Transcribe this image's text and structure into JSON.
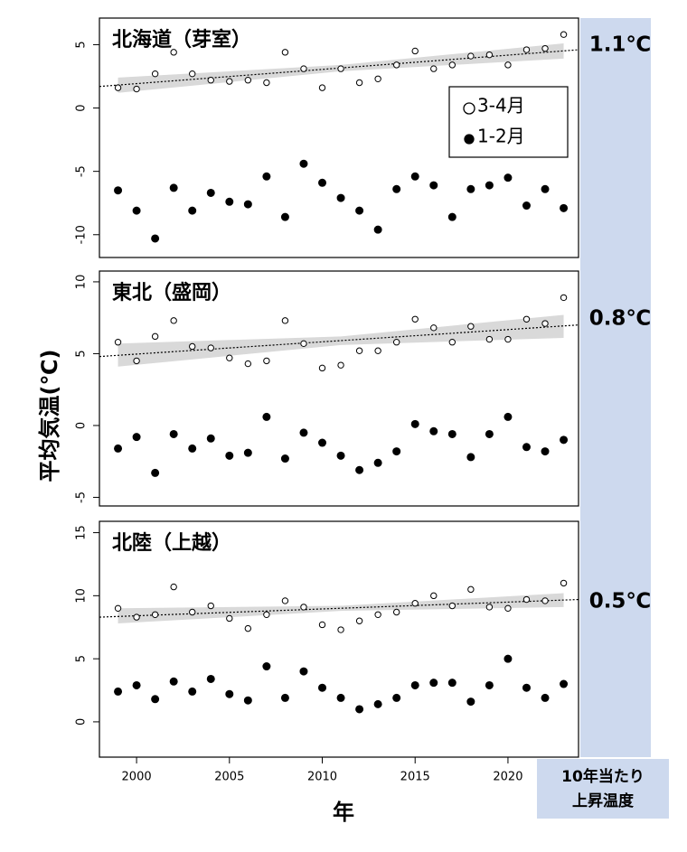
{
  "y_label": "平均気温(℃)",
  "x_label": "年",
  "rate_header": [
    "10年当たり",
    "上昇温度"
  ],
  "chart_data": [
    {
      "type": "scatter",
      "title": "北海道（芽室）",
      "rate_label": "1.1℃",
      "x": [
        1999,
        2000,
        2001,
        2002,
        2003,
        2004,
        2005,
        2006,
        2007,
        2008,
        2009,
        2010,
        2011,
        2012,
        2013,
        2014,
        2015,
        2016,
        2017,
        2018,
        2019,
        2020,
        2021,
        2022,
        2023
      ],
      "series": [
        {
          "name": "3-4月",
          "color": "#000000",
          "marker": "open",
          "values": [
            1.6,
            1.5,
            2.7,
            4.4,
            2.7,
            2.2,
            2.1,
            2.2,
            2.0,
            4.4,
            3.1,
            1.6,
            3.1,
            2.0,
            2.3,
            3.4,
            4.5,
            3.1,
            3.4,
            4.1,
            4.2,
            3.4,
            4.6,
            4.7,
            5.8
          ]
        },
        {
          "name": "1-2月",
          "color": "#000000",
          "marker": "filled",
          "values": [
            -6.5,
            -8.1,
            -10.3,
            -6.3,
            -8.1,
            -6.7,
            -7.4,
            -7.6,
            -5.4,
            -8.6,
            -4.4,
            -5.9,
            -7.1,
            -8.1,
            -9.6,
            -6.4,
            -5.4,
            -6.1,
            -8.6,
            -6.4,
            -6.1,
            -5.5,
            -7.7,
            -6.4,
            -7.9
          ]
        }
      ],
      "trend": {
        "x": [
          1998,
          2023.8
        ],
        "values": [
          1.7,
          4.6
        ]
      },
      "band": {
        "x": [
          1999,
          2011,
          2023
        ],
        "lower": [
          1.2,
          2.9,
          3.9
        ],
        "upper": [
          2.4,
          3.4,
          5.1
        ],
        "color": "#d9d9d9"
      },
      "xlim": [
        1998,
        2023.8
      ],
      "ylim": [
        -11.8,
        7.1
      ],
      "yticks": [
        -10,
        -5,
        0,
        5
      ],
      "legend": "right"
    },
    {
      "type": "scatter",
      "title": "東北（盛岡）",
      "rate_label": "0.8℃",
      "x": [
        1999,
        2000,
        2001,
        2002,
        2003,
        2004,
        2005,
        2006,
        2007,
        2008,
        2009,
        2010,
        2011,
        2012,
        2013,
        2014,
        2015,
        2016,
        2017,
        2018,
        2019,
        2020,
        2021,
        2022,
        2023
      ],
      "series": [
        {
          "name": "3-4月",
          "color": "#000000",
          "marker": "open",
          "values": [
            5.8,
            4.5,
            6.2,
            7.3,
            5.5,
            5.4,
            4.7,
            4.3,
            4.5,
            7.3,
            5.7,
            4.0,
            4.2,
            5.2,
            5.2,
            5.8,
            7.4,
            6.8,
            5.8,
            6.9,
            6.0,
            6.0,
            7.4,
            7.1,
            8.9
          ]
        },
        {
          "name": "1-2月",
          "color": "#000000",
          "marker": "filled",
          "values": [
            -1.6,
            -0.8,
            -3.3,
            -0.6,
            -1.6,
            -0.9,
            -2.1,
            -1.9,
            0.6,
            -2.3,
            -0.5,
            -1.2,
            -2.1,
            -3.1,
            -2.6,
            -1.8,
            0.1,
            -0.4,
            -0.6,
            -2.2,
            -0.6,
            0.6,
            -1.5,
            -1.8,
            -1.0
          ]
        }
      ],
      "trend": {
        "x": [
          1998,
          2023.8
        ],
        "values": [
          4.8,
          7.0
        ]
      },
      "band": {
        "x": [
          1999,
          2011,
          2023
        ],
        "lower": [
          4.1,
          5.6,
          6.1
        ],
        "upper": [
          5.7,
          6.2,
          7.7
        ],
        "color": "#d9d9d9"
      },
      "xlim": [
        1998,
        2023.8
      ],
      "ylim": [
        -5.6,
        10.75
      ],
      "yticks": [
        -5,
        0,
        5,
        10
      ]
    },
    {
      "type": "scatter",
      "title": "北陸（上越）",
      "rate_label": "0.5℃",
      "x": [
        1999,
        2000,
        2001,
        2002,
        2003,
        2004,
        2005,
        2006,
        2007,
        2008,
        2009,
        2010,
        2011,
        2012,
        2013,
        2014,
        2015,
        2016,
        2017,
        2018,
        2019,
        2020,
        2021,
        2022,
        2023
      ],
      "series": [
        {
          "name": "3-4月",
          "color": "#000000",
          "marker": "open",
          "values": [
            9.0,
            8.3,
            8.5,
            10.7,
            8.7,
            9.2,
            8.2,
            7.4,
            8.5,
            9.6,
            9.1,
            7.7,
            7.3,
            8.0,
            8.5,
            8.7,
            9.4,
            10.0,
            9.2,
            10.5,
            9.1,
            9.0,
            9.7,
            9.6,
            11.0
          ]
        },
        {
          "name": "1-2月",
          "color": "#000000",
          "marker": "filled",
          "values": [
            2.4,
            2.9,
            1.8,
            3.2,
            2.4,
            3.4,
            2.2,
            1.7,
            4.4,
            1.9,
            4.0,
            2.7,
            1.9,
            1.0,
            1.4,
            1.9,
            2.9,
            3.1,
            3.1,
            1.6,
            2.9,
            5.0,
            2.7,
            1.9,
            3.0
          ]
        }
      ],
      "trend": {
        "x": [
          1998,
          2023.8
        ],
        "values": [
          8.3,
          9.7
        ]
      },
      "band": {
        "x": [
          1999,
          2011,
          2023
        ],
        "lower": [
          7.8,
          8.8,
          9.1
        ],
        "upper": [
          9.0,
          9.2,
          10.2
        ],
        "color": "#d9d9d9"
      },
      "xlim": [
        1998,
        2023.8
      ],
      "ylim": [
        -2.8,
        15.9
      ],
      "yticks": [
        0,
        5,
        10,
        15
      ],
      "xticks": [
        2000,
        2005,
        2010,
        2015,
        2020
      ]
    }
  ]
}
